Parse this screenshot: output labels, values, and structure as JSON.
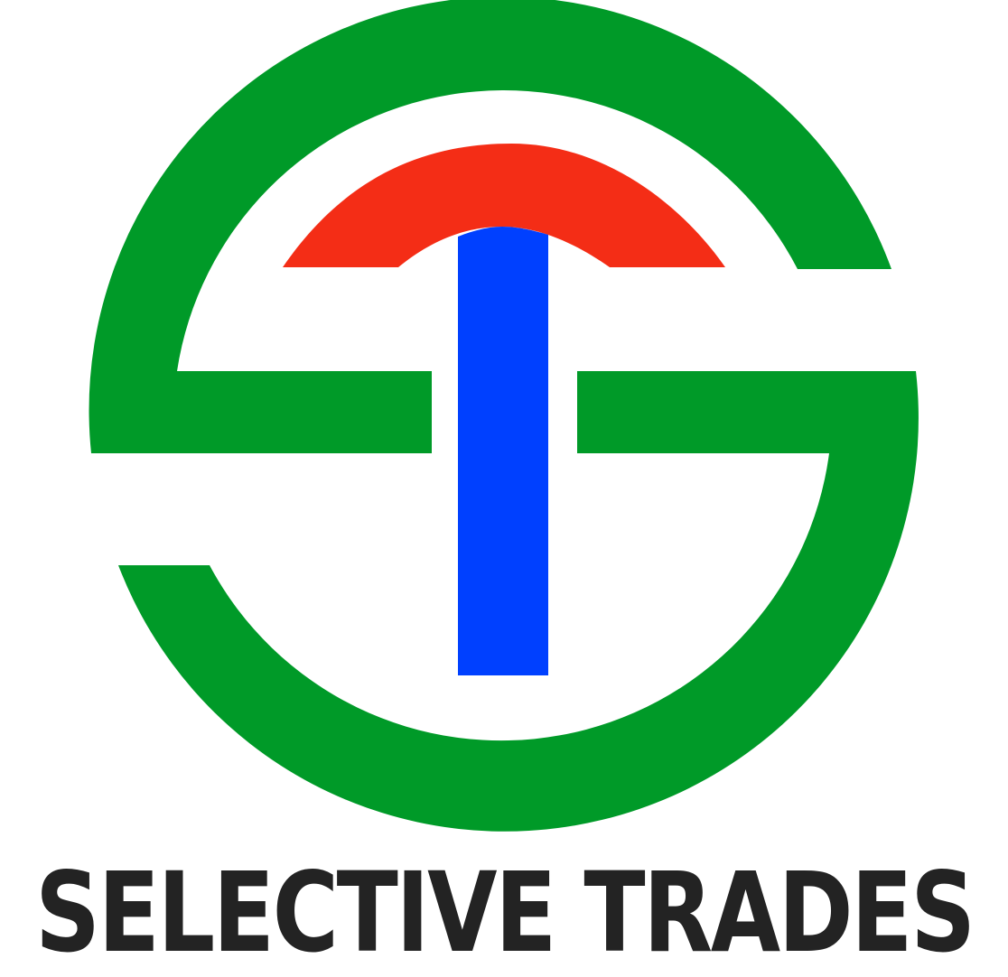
{
  "brand": {
    "name": "SELECTIVE TRADES"
  },
  "colors": {
    "ring": "#009a28",
    "arch": "#f42d16",
    "stem": "#0040ff",
    "text": "#232323",
    "background": "#ffffff"
  },
  "icons": {
    "mark": "st-monogram-logo"
  }
}
